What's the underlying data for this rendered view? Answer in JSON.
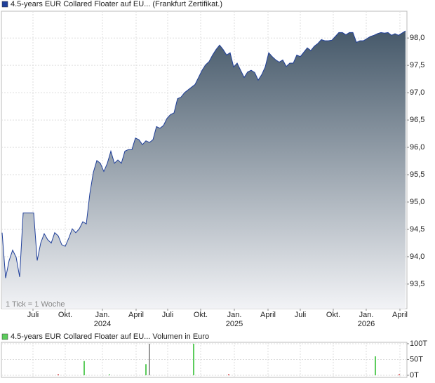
{
  "chart_data": [
    {
      "type": "area",
      "note": "1 Tick = 1 Woche",
      "series": [
        {
          "name": "4.5-years EUR Collared Floater auf EU... (Frankfurt Zertifikat.)",
          "color": "#1f3f9a",
          "values": [
            94.44,
            93.61,
            93.93,
            94.12,
            93.99,
            93.63,
            94.8,
            94.8,
            94.8,
            94.8,
            93.93,
            94.25,
            94.42,
            94.31,
            94.25,
            94.44,
            94.38,
            94.22,
            94.19,
            94.34,
            94.51,
            94.44,
            94.51,
            94.64,
            94.6,
            95.15,
            95.54,
            95.76,
            95.71,
            95.56,
            95.71,
            95.93,
            95.71,
            95.77,
            95.71,
            95.93,
            95.96,
            95.96,
            96.17,
            96.14,
            96.05,
            96.12,
            96.09,
            96.14,
            96.38,
            96.35,
            96.4,
            96.53,
            96.6,
            96.63,
            96.89,
            96.92,
            97.0,
            97.05,
            97.1,
            97.15,
            97.28,
            97.41,
            97.51,
            97.57,
            97.69,
            97.79,
            97.87,
            97.79,
            97.69,
            97.73,
            97.47,
            97.54,
            97.41,
            97.28,
            97.38,
            97.41,
            97.37,
            97.23,
            97.33,
            97.47,
            97.73,
            97.66,
            97.6,
            97.56,
            97.6,
            97.48,
            97.54,
            97.54,
            97.69,
            97.66,
            97.74,
            97.82,
            97.77,
            97.85,
            97.9,
            97.97,
            97.95,
            97.95,
            97.96,
            98.03,
            98.1,
            98.1,
            98.06,
            98.1,
            98.1,
            97.92,
            97.95,
            97.95,
            97.99,
            98.03,
            98.05,
            98.08,
            98.1,
            98.09,
            98.1,
            98.05,
            98.08,
            98.05,
            98.09,
            98.13
          ]
        }
      ],
      "xlim": [
        -0.2,
        115.4
      ],
      "xticks": [
        {
          "value": 8.8,
          "label": "Juli"
        },
        {
          "value": 18,
          "label": "Okt."
        },
        {
          "value": 28.6,
          "label": "Jan.",
          "year": "2024"
        },
        {
          "value": 38.2,
          "label": "April"
        },
        {
          "value": 47.2,
          "label": "Juli"
        },
        {
          "value": 56.6,
          "label": "Okt."
        },
        {
          "value": 66.2,
          "label": "Jan.",
          "year": "2025"
        },
        {
          "value": 75.8,
          "label": "April"
        },
        {
          "value": 85,
          "label": "Juli"
        },
        {
          "value": 94.4,
          "label": "Okt."
        },
        {
          "value": 103.8,
          "label": "Jan.",
          "year": "2026"
        },
        {
          "value": 113.4,
          "label": "April"
        }
      ],
      "ylim": [
        93.05,
        98.49
      ],
      "yticks": [
        {
          "value": 93.5,
          "label": "93,5"
        },
        {
          "value": 94.0,
          "label": "94,0"
        },
        {
          "value": 94.5,
          "label": "94,5"
        },
        {
          "value": 95.0,
          "label": "95,0"
        },
        {
          "value": 95.5,
          "label": "95,5"
        },
        {
          "value": 96.0,
          "label": "96,0"
        },
        {
          "value": 96.5,
          "label": "96,5"
        },
        {
          "value": 97.0,
          "label": "97,0"
        },
        {
          "value": 97.5,
          "label": "97,5"
        },
        {
          "value": 98.0,
          "label": "98,0"
        }
      ],
      "grid": true
    },
    {
      "type": "bar",
      "series": [
        {
          "name": "4.5-years EUR Collared Floater auf EU... Volumen in Euro",
          "color": "#5ccc5c",
          "values": [
            3,
            45,
            3,
            35,
            100,
            100,
            3,
            60,
            3
          ],
          "bar_colors": [
            "#d03030",
            "#5ccc5c",
            "#5ccc5c",
            "#5ccc5c",
            "#999999",
            "#5ccc5c",
            "#d03030",
            "#5ccc5c",
            "#d03030"
          ]
        }
      ],
      "x": [
        16,
        23.4,
        30.6,
        41,
        42,
        54.6,
        64.6,
        106.4,
        113.2
      ],
      "xlim": [
        -0.2,
        115.4
      ],
      "ylim": [
        -6.7,
        104.4
      ],
      "yticks": [
        {
          "value": 0,
          "label": "0T"
        },
        {
          "value": 50,
          "label": "50T"
        },
        {
          "value": 100,
          "label": "100T"
        }
      ],
      "grid": true
    }
  ]
}
